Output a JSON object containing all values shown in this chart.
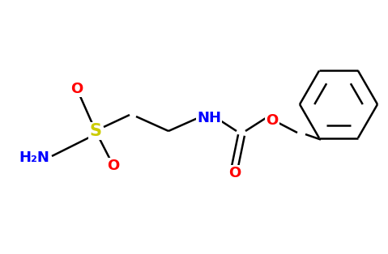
{
  "background_color": "#ffffff",
  "bond_color": "#000000",
  "atom_colors": {
    "O": "#ff0000",
    "N": "#0000ff",
    "S": "#cccc00",
    "H2N": "#0000ff",
    "NH": "#0000ff"
  },
  "figsize": [
    4.79,
    3.14
  ],
  "dpi": 100,
  "lw": 1.8,
  "font_size": 13
}
